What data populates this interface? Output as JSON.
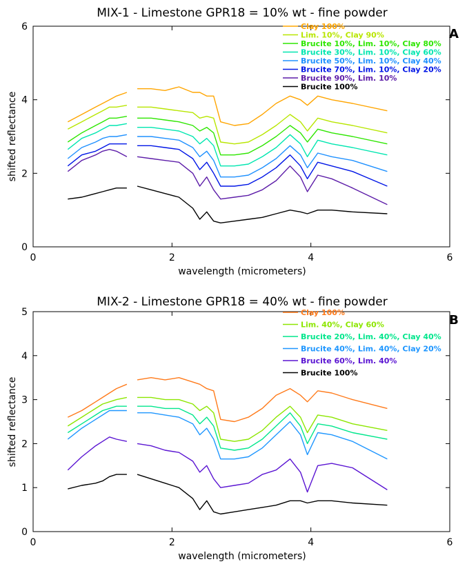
{
  "chart_data": [
    {
      "type": "line",
      "panel": "A",
      "title": "MIX-1 - Limestone GPR18 = 10% wt - fine powder",
      "xlabel": "wavelength (micrometers)",
      "ylabel": "shifted reflectance",
      "xlim": [
        0,
        6
      ],
      "ylim": [
        0,
        6
      ],
      "xticks": [
        0,
        2,
        4,
        6
      ],
      "yticks": [
        0,
        2,
        4,
        6
      ],
      "grid": false,
      "legend_position": "top-right",
      "x": [
        0.5,
        0.7,
        0.9,
        1.0,
        1.1,
        1.2,
        1.35,
        1.5,
        1.7,
        1.9,
        2.1,
        2.3,
        2.4,
        2.5,
        2.6,
        2.7,
        2.9,
        3.1,
        3.3,
        3.5,
        3.7,
        3.85,
        3.95,
        4.1,
        4.3,
        4.6,
        5.1
      ],
      "series": [
        {
          "name": "Clay 100%",
          "color": "#ffa500",
          "values": [
            3.4,
            3.6,
            3.8,
            3.9,
            4.0,
            4.1,
            4.2,
            4.3,
            4.3,
            4.25,
            4.35,
            4.2,
            4.2,
            4.1,
            4.1,
            3.4,
            3.3,
            3.35,
            3.6,
            3.9,
            4.1,
            4.0,
            3.85,
            4.1,
            4.0,
            3.9,
            3.7
          ]
        },
        {
          "name": "Lim. 10%, Clay 90%",
          "color": "#b8e600",
          "values": [
            3.2,
            3.4,
            3.6,
            3.7,
            3.8,
            3.8,
            3.85,
            3.8,
            3.8,
            3.75,
            3.7,
            3.65,
            3.5,
            3.55,
            3.5,
            2.85,
            2.8,
            2.85,
            3.05,
            3.3,
            3.6,
            3.4,
            3.15,
            3.5,
            3.4,
            3.3,
            3.1
          ]
        },
        {
          "name": "Brucite 10%, Lim. 10%, Clay 80%",
          "color": "#2ee600",
          "values": [
            2.85,
            3.1,
            3.3,
            3.4,
            3.5,
            3.5,
            3.55,
            3.5,
            3.5,
            3.45,
            3.4,
            3.3,
            3.15,
            3.25,
            3.1,
            2.5,
            2.5,
            2.55,
            2.75,
            3.0,
            3.3,
            3.1,
            2.85,
            3.2,
            3.1,
            3.0,
            2.8
          ]
        },
        {
          "name": "Brucite 30%, Lim. 10%, Clay 60%",
          "color": "#00e6b0",
          "values": [
            2.65,
            2.95,
            3.1,
            3.2,
            3.3,
            3.3,
            3.35,
            3.25,
            3.25,
            3.2,
            3.15,
            3.0,
            2.8,
            2.95,
            2.75,
            2.2,
            2.2,
            2.25,
            2.45,
            2.7,
            3.05,
            2.8,
            2.45,
            2.9,
            2.8,
            2.7,
            2.5
          ]
        },
        {
          "name": "Brucite 50%, Lim. 10%, Clay 40%",
          "color": "#1e90ff",
          "values": [
            2.4,
            2.7,
            2.85,
            2.95,
            3.0,
            3.0,
            3.05,
            3.0,
            3.0,
            2.95,
            2.9,
            2.7,
            2.45,
            2.6,
            2.35,
            1.9,
            1.9,
            1.95,
            2.15,
            2.4,
            2.75,
            2.5,
            2.15,
            2.55,
            2.45,
            2.35,
            2.05
          ]
        },
        {
          "name": "Brucite 70%, Lim. 10%, Clay 20%",
          "color": "#0015e6",
          "values": [
            2.2,
            2.5,
            2.6,
            2.7,
            2.8,
            2.8,
            2.8,
            2.75,
            2.75,
            2.7,
            2.65,
            2.4,
            2.1,
            2.3,
            2.0,
            1.65,
            1.65,
            1.7,
            1.9,
            2.15,
            2.5,
            2.2,
            1.85,
            2.3,
            2.2,
            2.05,
            1.65
          ]
        },
        {
          "name": "Brucite 90%, Lim. 10%",
          "color": "#5c1ca8",
          "values": [
            2.05,
            2.35,
            2.5,
            2.6,
            2.65,
            2.6,
            2.45,
            2.45,
            2.4,
            2.35,
            2.3,
            2.0,
            1.65,
            1.9,
            1.55,
            1.3,
            1.35,
            1.4,
            1.55,
            1.8,
            2.2,
            1.9,
            1.5,
            1.95,
            1.85,
            1.6,
            1.15
          ]
        },
        {
          "name": "Brucite 100%",
          "color": "#000000",
          "values": [
            1.3,
            1.35,
            1.45,
            1.5,
            1.55,
            1.6,
            1.6,
            1.65,
            1.55,
            1.45,
            1.35,
            1.05,
            0.75,
            0.95,
            0.7,
            0.65,
            0.7,
            0.75,
            0.8,
            0.9,
            1.0,
            0.95,
            0.9,
            1.0,
            1.0,
            0.95,
            0.9
          ]
        }
      ]
    },
    {
      "type": "line",
      "panel": "B",
      "title": "MIX-2 - Limestone GPR18 = 40% wt - fine powder",
      "xlabel": "wavelength (micrometers)",
      "ylabel": "shifted reflectance",
      "xlim": [
        0,
        6
      ],
      "ylim": [
        0,
        5
      ],
      "xticks": [
        0,
        2,
        4,
        6
      ],
      "yticks": [
        0,
        1,
        2,
        3,
        4,
        5
      ],
      "grid": false,
      "legend_position": "top-right",
      "x": [
        0.5,
        0.7,
        0.9,
        1.0,
        1.1,
        1.2,
        1.35,
        1.5,
        1.7,
        1.9,
        2.1,
        2.3,
        2.4,
        2.5,
        2.6,
        2.7,
        2.9,
        3.1,
        3.3,
        3.5,
        3.7,
        3.85,
        3.95,
        4.1,
        4.3,
        4.6,
        5.1
      ],
      "series": [
        {
          "name": "Clay 100%",
          "color": "#ff7a1a",
          "values": [
            2.6,
            2.75,
            2.95,
            3.05,
            3.15,
            3.25,
            3.35,
            3.45,
            3.5,
            3.45,
            3.5,
            3.4,
            3.35,
            3.25,
            3.2,
            2.55,
            2.5,
            2.6,
            2.8,
            3.1,
            3.25,
            3.1,
            2.95,
            3.2,
            3.15,
            3.0,
            2.8
          ]
        },
        {
          "name": "Lim. 40%, Clay 60%",
          "color": "#8ce600",
          "values": [
            2.4,
            2.6,
            2.8,
            2.9,
            2.95,
            3.0,
            3.05,
            3.05,
            3.05,
            3.0,
            3.0,
            2.9,
            2.75,
            2.85,
            2.7,
            2.1,
            2.05,
            2.1,
            2.3,
            2.6,
            2.85,
            2.6,
            2.25,
            2.65,
            2.6,
            2.45,
            2.3
          ]
        },
        {
          "name": "Brucite 20%, Lim. 40%, Clay 40%",
          "color": "#00e68c",
          "values": [
            2.25,
            2.45,
            2.65,
            2.75,
            2.8,
            2.85,
            2.85,
            2.85,
            2.85,
            2.8,
            2.8,
            2.65,
            2.45,
            2.6,
            2.4,
            1.9,
            1.85,
            1.9,
            2.1,
            2.4,
            2.7,
            2.4,
            2.0,
            2.45,
            2.4,
            2.25,
            2.1
          ]
        },
        {
          "name": "Brucite 40%, Lim. 40%, Clay 20%",
          "color": "#1e96ff",
          "values": [
            2.1,
            2.35,
            2.55,
            2.65,
            2.75,
            2.75,
            2.75,
            2.7,
            2.7,
            2.65,
            2.6,
            2.45,
            2.2,
            2.35,
            2.1,
            1.65,
            1.65,
            1.7,
            1.9,
            2.2,
            2.5,
            2.2,
            1.75,
            2.25,
            2.2,
            2.05,
            1.65
          ]
        },
        {
          "name": "Brucite 60%, Lim. 40%",
          "color": "#5a14d2",
          "values": [
            1.4,
            1.7,
            1.95,
            2.05,
            2.15,
            2.1,
            2.05,
            2.0,
            1.95,
            1.85,
            1.8,
            1.6,
            1.35,
            1.5,
            1.2,
            1.0,
            1.05,
            1.1,
            1.3,
            1.4,
            1.65,
            1.35,
            0.9,
            1.5,
            1.55,
            1.45,
            0.95
          ]
        },
        {
          "name": "Brucite 100%",
          "color": "#000000",
          "values": [
            0.97,
            1.05,
            1.1,
            1.15,
            1.25,
            1.3,
            1.3,
            1.3,
            1.2,
            1.1,
            1.0,
            0.75,
            0.5,
            0.7,
            0.45,
            0.4,
            0.45,
            0.5,
            0.55,
            0.6,
            0.7,
            0.7,
            0.65,
            0.7,
            0.7,
            0.65,
            0.6
          ]
        }
      ]
    }
  ]
}
